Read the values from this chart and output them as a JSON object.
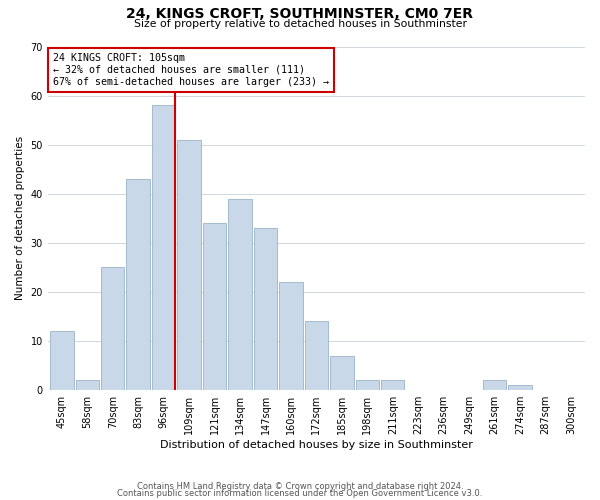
{
  "title": "24, KINGS CROFT, SOUTHMINSTER, CM0 7ER",
  "subtitle": "Size of property relative to detached houses in Southminster",
  "xlabel": "Distribution of detached houses by size in Southminster",
  "ylabel": "Number of detached properties",
  "bar_labels": [
    "45sqm",
    "58sqm",
    "70sqm",
    "83sqm",
    "96sqm",
    "109sqm",
    "121sqm",
    "134sqm",
    "147sqm",
    "160sqm",
    "172sqm",
    "185sqm",
    "198sqm",
    "211sqm",
    "223sqm",
    "236sqm",
    "249sqm",
    "261sqm",
    "274sqm",
    "287sqm",
    "300sqm"
  ],
  "bar_values": [
    12,
    2,
    25,
    43,
    58,
    51,
    34,
    39,
    33,
    22,
    14,
    7,
    2,
    2,
    0,
    0,
    0,
    2,
    1,
    0,
    0
  ],
  "bar_color": "#c8d8e8",
  "bar_edge_color": "#9ab4c8",
  "vline_x_index": 4,
  "vline_color": "#cc0000",
  "ylim": [
    0,
    70
  ],
  "yticks": [
    0,
    10,
    20,
    30,
    40,
    50,
    60,
    70
  ],
  "annotation_text": "24 KINGS CROFT: 105sqm\n← 32% of detached houses are smaller (111)\n67% of semi-detached houses are larger (233) →",
  "annotation_box_color": "#ffffff",
  "annotation_box_edge_color": "#cc0000",
  "footer_line1": "Contains HM Land Registry data © Crown copyright and database right 2024.",
  "footer_line2": "Contains public sector information licensed under the Open Government Licence v3.0.",
  "background_color": "#ffffff",
  "grid_color": "#d0d8e0"
}
